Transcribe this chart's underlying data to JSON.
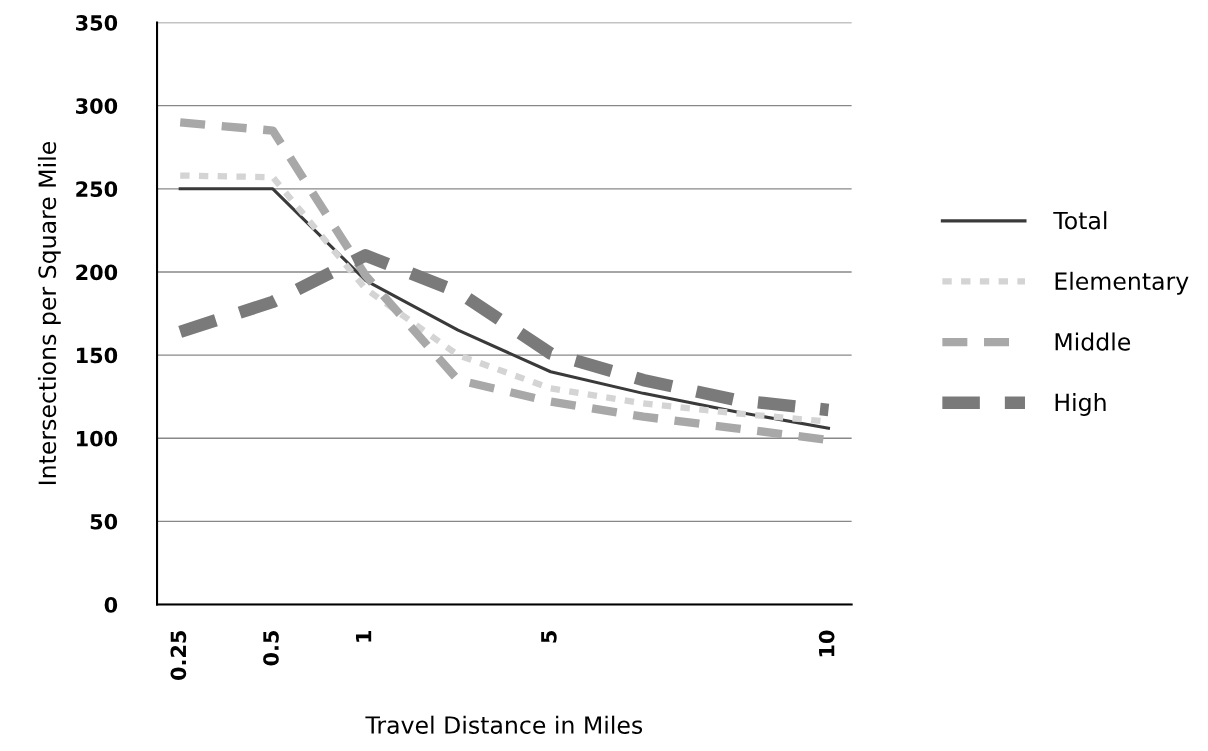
{
  "chart_data": {
    "type": "line",
    "xlabel": "Travel Distance in Miles",
    "ylabel": "Intersections per Square Mile",
    "categories": [
      "0.25",
      "0.5",
      "1",
      null,
      "5",
      null,
      null,
      "10"
    ],
    "ylim": [
      0,
      350
    ],
    "yticks": [
      0,
      50,
      100,
      150,
      200,
      250,
      300,
      350
    ],
    "grid": "y",
    "legend": "right",
    "marker": "none",
    "series": [
      {
        "name": "Total",
        "color": "#3a3a3a",
        "line_style": "solid",
        "values": [
          250,
          250,
          195,
          165,
          140,
          127,
          116,
          106
        ]
      },
      {
        "name": "Elementary",
        "color": "#d4d4d4",
        "line_style": "dotted",
        "values": [
          258,
          257,
          190,
          150,
          130,
          121,
          115,
          110
        ]
      },
      {
        "name": "Middle",
        "color": "#a8a8a8",
        "line_style": "dashed",
        "values": [
          290,
          285,
          198,
          135,
          122,
          113,
          106,
          99
        ]
      },
      {
        "name": "High",
        "color": "#7a7a7a",
        "line_style": "dashed",
        "values": [
          164,
          182,
          210,
          188,
          151,
          135,
          123,
          117
        ]
      }
    ]
  }
}
